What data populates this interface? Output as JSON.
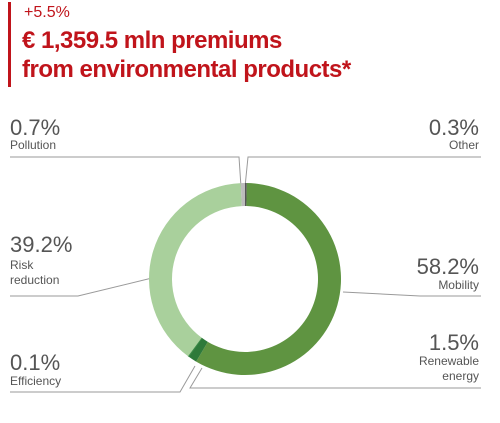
{
  "header": {
    "growth": "+5.5%",
    "title_line1": "€ 1,359.5 mln premiums",
    "title_line2": "from environmental products*"
  },
  "colors": {
    "accent": "#c0141b",
    "mobility": "#5f9441",
    "renewable_energy": "#2e7a3a",
    "efficiency": "#3b8a48",
    "risk_reduction": "#a9d09c",
    "pollution": "#bcbcbc",
    "other": "#555555",
    "leader_line": "#9a9a9a"
  },
  "chart_data": {
    "type": "pie",
    "donut": true,
    "slices": [
      {
        "label": "Other",
        "value": 0.3,
        "pct_text": "0.3%",
        "label_lines": [
          "Other"
        ]
      },
      {
        "label": "Mobility",
        "value": 58.2,
        "pct_text": "58.2%",
        "label_lines": [
          "Mobility"
        ]
      },
      {
        "label": "Renewable energy",
        "value": 1.5,
        "pct_text": "1.5%",
        "label_lines": [
          "Renewable",
          "energy"
        ]
      },
      {
        "label": "Efficiency",
        "value": 0.1,
        "pct_text": "0.1%",
        "label_lines": [
          "Efficiency"
        ]
      },
      {
        "label": "Risk reduction",
        "value": 39.2,
        "pct_text": "39.2%",
        "label_lines": [
          "Risk",
          "reduction"
        ]
      },
      {
        "label": "Pollution",
        "value": 0.7,
        "pct_text": "0.7%",
        "label_lines": [
          "Pollution"
        ]
      }
    ]
  }
}
